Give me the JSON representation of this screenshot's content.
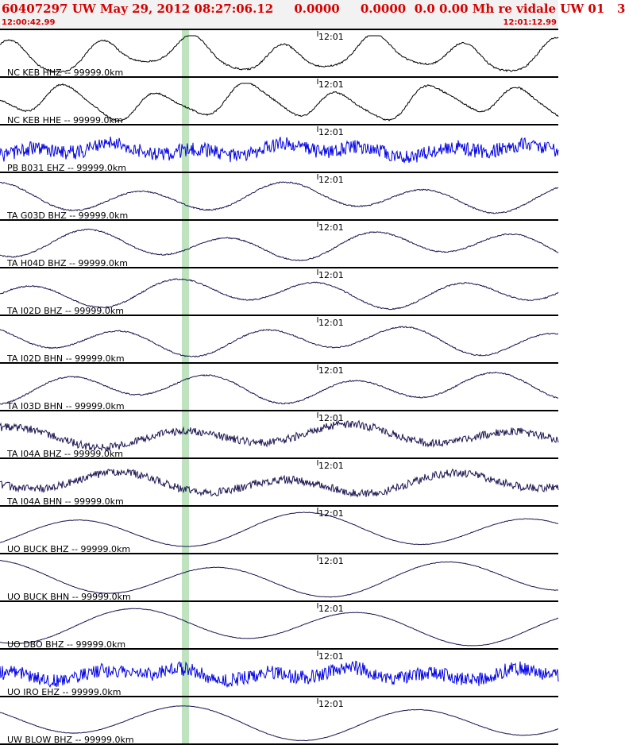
{
  "header": {
    "title": "60407297 UW May 29, 2012 08:27:06.12     0.0000     0.0000  0.0 0.00 Mh re vidale UW 01   3",
    "start_time": "12:00:42.99",
    "end_time": "12:01:12.99"
  },
  "colors": {
    "header_text": "#d60000",
    "broadband_trace": "#1a1450",
    "short_period_trace": "#0000e6",
    "highlight_band": "#bfe3bf",
    "panel_border": "#000000"
  },
  "tick_label": "12:01",
  "traces": [
    {
      "label": "NC KEB HHZ -- 99999.0km",
      "color": "#000000",
      "style": "hh"
    },
    {
      "label": "NC KEB HHE -- 99999.0km",
      "color": "#000000",
      "style": "hh"
    },
    {
      "label": "PB B031 EHZ -- 99999.0km",
      "color": "#0000e6",
      "style": "noise"
    },
    {
      "label": "TA G03D BHZ -- 99999.0km",
      "color": "#1a1450",
      "style": "smooth"
    },
    {
      "label": "TA H04D BHZ -- 99999.0km",
      "color": "#1a1450",
      "style": "smooth"
    },
    {
      "label": "TA I02D BHZ -- 99999.0km",
      "color": "#1a1450",
      "style": "smooth"
    },
    {
      "label": "TA I02D BHN -- 99999.0km",
      "color": "#1a1450",
      "style": "smooth"
    },
    {
      "label": "TA I03D BHN -- 99999.0km",
      "color": "#1a1450",
      "style": "smooth"
    },
    {
      "label": "TA I04A BHZ -- 99999.0km",
      "color": "#1a1450",
      "style": "busy"
    },
    {
      "label": "TA I04A BHN -- 99999.0km",
      "color": "#1a1450",
      "style": "busy"
    },
    {
      "label": "UO BUCK BHZ -- 99999.0km",
      "color": "#1a1450",
      "style": "long"
    },
    {
      "label": "UO BUCK BHN -- 99999.0km",
      "color": "#1a1450",
      "style": "long"
    },
    {
      "label": "UO DBO BHZ -- 99999.0km",
      "color": "#1a1450",
      "style": "long"
    },
    {
      "label": "UO IRO EHZ -- 99999.0km",
      "color": "#0000e6",
      "style": "noise"
    },
    {
      "label": "UW BLOW BHZ -- 99999.0km",
      "color": "#1a1450",
      "style": "long"
    }
  ]
}
